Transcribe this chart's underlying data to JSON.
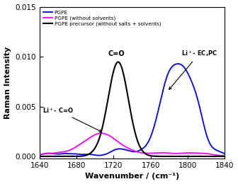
{
  "title": "",
  "xlabel": "Wavenumber / (cm⁻¹)",
  "ylabel": "Raman Intensity",
  "xlim": [
    1640,
    1840
  ],
  "ylim": [
    -0.0002,
    0.015
  ],
  "yticks": [
    0.0,
    0.005,
    0.01,
    0.015
  ],
  "xticks": [
    1640,
    1680,
    1720,
    1760,
    1800,
    1840
  ],
  "legend": [
    {
      "label": "PGPE",
      "color": "#0000FF"
    },
    {
      "label": "PGPE (without solvents)",
      "color": "#FF00FF"
    },
    {
      "label": "PGPE precursor (without salts + solvents)",
      "color": "#000000"
    }
  ],
  "background_color": "#ffffff"
}
